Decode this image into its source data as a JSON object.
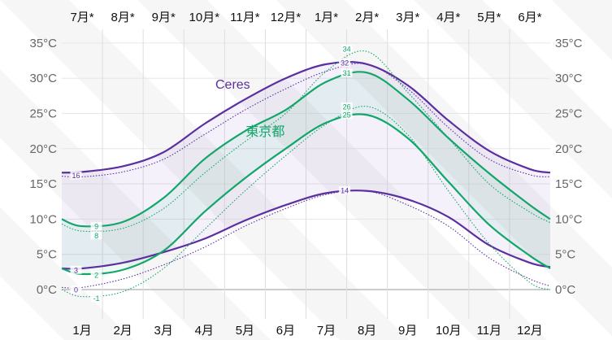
{
  "chart_data": {
    "type": "line",
    "title": "",
    "xlabel": "",
    "ylabel": "",
    "ylim": [
      -5,
      37
    ],
    "y_ticks": [
      "0°C",
      "5°C",
      "10°C",
      "15°C",
      "20°C",
      "25°C",
      "30°C",
      "35°C"
    ],
    "y_tick_values": [
      0,
      5,
      10,
      15,
      20,
      25,
      30,
      35
    ],
    "x_ticks_bottom": [
      "1月",
      "2月",
      "3月",
      "4月",
      "5月",
      "6月",
      "7月",
      "8月",
      "9月",
      "10月",
      "11月",
      "12月"
    ],
    "x_ticks_top": [
      "7月*",
      "8月*",
      "9月*",
      "10月*",
      "11月*",
      "12月*",
      "1月*",
      "2月*",
      "3月*",
      "4月*",
      "5月*",
      "6月*"
    ],
    "x": [
      0,
      0.5,
      1.5,
      2.5,
      3.5,
      4.5,
      5.5,
      6.5,
      7.5,
      8.5,
      9.5,
      10.5,
      11.5,
      12
    ],
    "series": [
      {
        "name": "Ceres high",
        "style": "solid",
        "color": "#5b2fa0",
        "values": [
          16.6,
          16.7,
          17.5,
          19.5,
          23.5,
          27,
          30,
          32,
          32,
          29,
          24,
          19.7,
          17.1,
          16.6
        ]
      },
      {
        "name": "Ceres low",
        "style": "solid",
        "color": "#5b2fa0",
        "values": [
          3,
          3,
          3.8,
          5.3,
          7.2,
          9.8,
          12,
          13.7,
          14,
          12.8,
          10.3,
          6.3,
          3.8,
          3.2
        ]
      },
      {
        "name": "東京都 high",
        "style": "solid",
        "color": "#12a66a",
        "values": [
          10,
          9,
          9.6,
          13,
          18.5,
          22.5,
          25.5,
          29.5,
          30.8,
          27,
          21.5,
          16.5,
          12,
          10
        ]
      },
      {
        "name": "東京都 low",
        "style": "solid",
        "color": "#12a66a",
        "values": [
          3,
          2.2,
          2.8,
          5.5,
          11,
          15.8,
          20,
          23.7,
          24.8,
          21.5,
          15.3,
          9.2,
          4.8,
          3
        ]
      },
      {
        "name": "Ceres high (dotted)",
        "style": "dotted",
        "color": "#5b2fa0",
        "values": [
          16.1,
          16,
          16.7,
          18.5,
          22,
          25.5,
          28.5,
          31,
          32,
          28.5,
          23,
          18.5,
          16.3,
          16
        ]
      },
      {
        "name": "Ceres low (dotted)",
        "style": "dotted",
        "color": "#5b2fa0",
        "values": [
          0.3,
          0.3,
          1.5,
          3.5,
          6,
          9,
          11.5,
          13.5,
          14,
          12,
          9,
          4.5,
          1.5,
          0.5
        ]
      },
      {
        "name": "東京都 high (dotted)",
        "style": "dotted",
        "color": "#12a66a",
        "values": [
          9.3,
          8.3,
          8.7,
          11.5,
          16.5,
          21,
          25,
          31,
          33.8,
          28,
          21.5,
          15,
          11,
          9.5
        ]
      },
      {
        "name": "東京都 low (dotted)",
        "style": "dotted",
        "color": "#12a66a",
        "values": [
          0,
          -1,
          -0.3,
          3,
          8.5,
          14,
          19,
          23.5,
          26,
          22,
          14,
          6.5,
          1,
          0
        ]
      }
    ],
    "annotations": [
      {
        "text": "16",
        "x": 0.35,
        "y": 16.2,
        "color": "#5b2fa0"
      },
      {
        "text": "9",
        "x": 0.85,
        "y": 9,
        "color": "#12a66a"
      },
      {
        "text": "8",
        "x": 0.85,
        "y": 7.7,
        "color": "#12a66a"
      },
      {
        "text": "3",
        "x": 0.35,
        "y": 2.8,
        "color": "#5b2fa0"
      },
      {
        "text": "2",
        "x": 0.85,
        "y": 2.1,
        "color": "#12a66a"
      },
      {
        "text": "0",
        "x": 0.35,
        "y": 0,
        "color": "#5b2fa0"
      },
      {
        "text": "-1",
        "x": 0.85,
        "y": -1.2,
        "color": "#12a66a"
      },
      {
        "text": "34",
        "x": 7,
        "y": 34.2,
        "color": "#12a66a"
      },
      {
        "text": "32",
        "x": 6.95,
        "y": 32.2,
        "color": "#5b2fa0"
      },
      {
        "text": "31",
        "x": 7,
        "y": 30.8,
        "color": "#12a66a"
      },
      {
        "text": "26",
        "x": 7,
        "y": 26,
        "color": "#12a66a"
      },
      {
        "text": "25",
        "x": 7,
        "y": 24.8,
        "color": "#12a66a"
      },
      {
        "text": "14",
        "x": 6.95,
        "y": 14.1,
        "color": "#5b2fa0"
      }
    ],
    "legend": [
      {
        "text": "Ceres",
        "x": 4.2,
        "y": 28.5,
        "color": "#5b2fa0"
      },
      {
        "text": "東京都",
        "x": 5,
        "y": 21.8,
        "color": "#12a66a"
      }
    ]
  }
}
